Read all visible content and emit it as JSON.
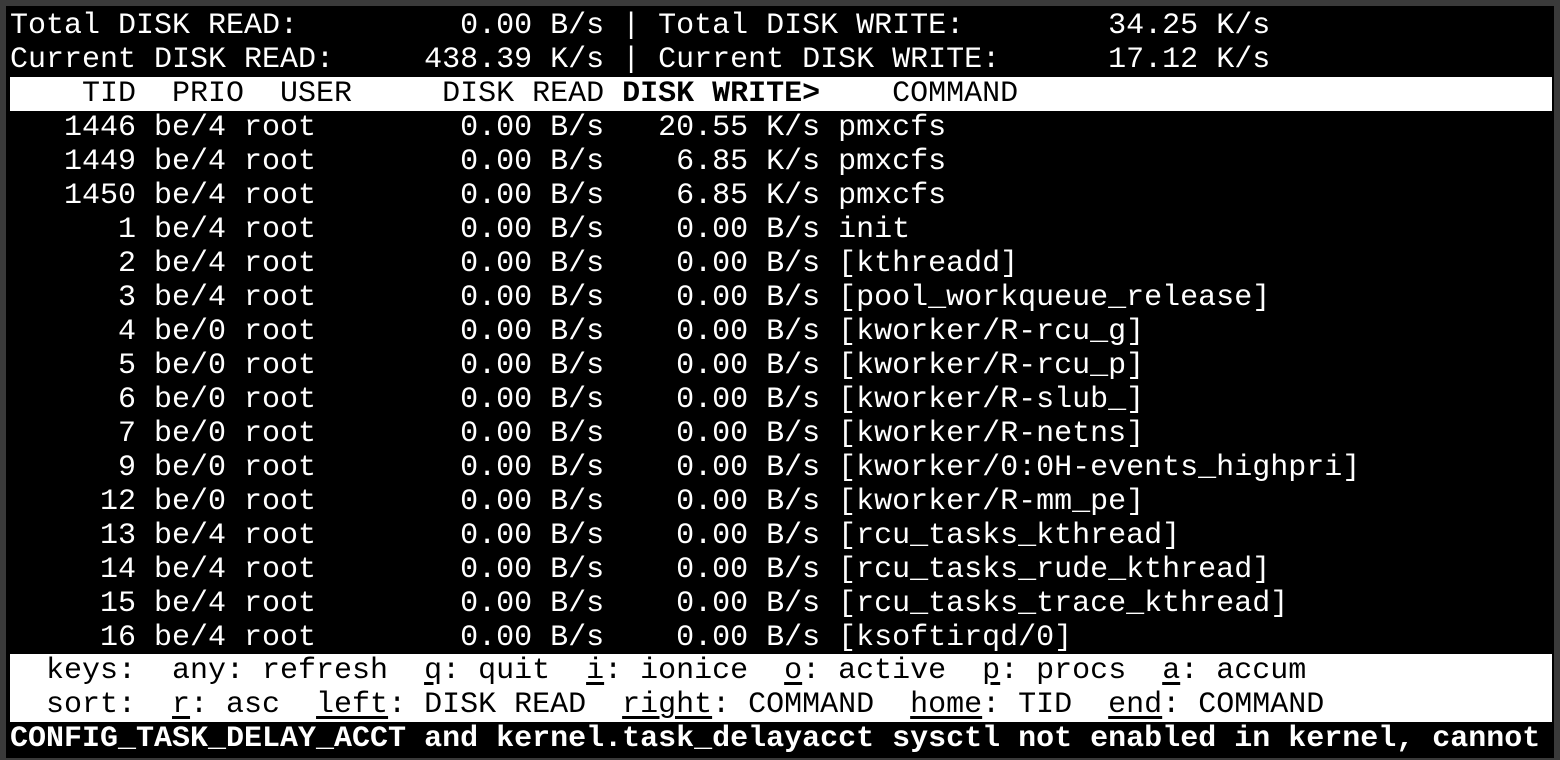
{
  "summary": {
    "total_read_label": "Total DISK READ:",
    "total_read": "0.00 B/s",
    "total_write_label": "Total DISK WRITE:",
    "total_write": "34.25 K/s",
    "current_read_label": "Current DISK READ:",
    "current_read": "438.39 K/s",
    "current_write_label": "Current DISK WRITE:",
    "current_write": "17.12 K/s",
    "separator": "|"
  },
  "columns": {
    "tid": "TID",
    "prio": "PRIO",
    "user": "USER",
    "disk_read": "DISK READ",
    "disk_write": "DISK WRITE>",
    "command": "COMMAND"
  },
  "rows": [
    {
      "tid": "1446",
      "prio": "be/4",
      "user": "root",
      "read": "0.00 B/s",
      "write": "20.55 K/s",
      "command": "pmxcfs"
    },
    {
      "tid": "1449",
      "prio": "be/4",
      "user": "root",
      "read": "0.00 B/s",
      "write": "6.85 K/s",
      "command": "pmxcfs"
    },
    {
      "tid": "1450",
      "prio": "be/4",
      "user": "root",
      "read": "0.00 B/s",
      "write": "6.85 K/s",
      "command": "pmxcfs"
    },
    {
      "tid": "1",
      "prio": "be/4",
      "user": "root",
      "read": "0.00 B/s",
      "write": "0.00 B/s",
      "command": "init"
    },
    {
      "tid": "2",
      "prio": "be/4",
      "user": "root",
      "read": "0.00 B/s",
      "write": "0.00 B/s",
      "command": "[kthreadd]"
    },
    {
      "tid": "3",
      "prio": "be/4",
      "user": "root",
      "read": "0.00 B/s",
      "write": "0.00 B/s",
      "command": "[pool_workqueue_release]"
    },
    {
      "tid": "4",
      "prio": "be/0",
      "user": "root",
      "read": "0.00 B/s",
      "write": "0.00 B/s",
      "command": "[kworker/R-rcu_g]"
    },
    {
      "tid": "5",
      "prio": "be/0",
      "user": "root",
      "read": "0.00 B/s",
      "write": "0.00 B/s",
      "command": "[kworker/R-rcu_p]"
    },
    {
      "tid": "6",
      "prio": "be/0",
      "user": "root",
      "read": "0.00 B/s",
      "write": "0.00 B/s",
      "command": "[kworker/R-slub_]"
    },
    {
      "tid": "7",
      "prio": "be/0",
      "user": "root",
      "read": "0.00 B/s",
      "write": "0.00 B/s",
      "command": "[kworker/R-netns]"
    },
    {
      "tid": "9",
      "prio": "be/0",
      "user": "root",
      "read": "0.00 B/s",
      "write": "0.00 B/s",
      "command": "[kworker/0:0H-events_highpri]"
    },
    {
      "tid": "12",
      "prio": "be/0",
      "user": "root",
      "read": "0.00 B/s",
      "write": "0.00 B/s",
      "command": "[kworker/R-mm_pe]"
    },
    {
      "tid": "13",
      "prio": "be/4",
      "user": "root",
      "read": "0.00 B/s",
      "write": "0.00 B/s",
      "command": "[rcu_tasks_kthread]"
    },
    {
      "tid": "14",
      "prio": "be/4",
      "user": "root",
      "read": "0.00 B/s",
      "write": "0.00 B/s",
      "command": "[rcu_tasks_rude_kthread]"
    },
    {
      "tid": "15",
      "prio": "be/4",
      "user": "root",
      "read": "0.00 B/s",
      "write": "0.00 B/s",
      "command": "[rcu_tasks_trace_kthread]"
    },
    {
      "tid": "16",
      "prio": "be/4",
      "user": "root",
      "read": "0.00 B/s",
      "write": "0.00 B/s",
      "command": "[ksoftirqd/0]"
    }
  ],
  "keys_line": {
    "label": "keys:",
    "items": [
      {
        "key": "any",
        "rest": ": refresh",
        "underline": false
      },
      {
        "key": "q",
        "rest": ": quit",
        "underline": true
      },
      {
        "key": "i",
        "rest": ": ionice",
        "underline": true
      },
      {
        "key": "o",
        "rest": ": active",
        "underline": true
      },
      {
        "key": "p",
        "rest": ": procs",
        "underline": true
      },
      {
        "key": "a",
        "rest": ": accum",
        "underline": true
      }
    ]
  },
  "sort_line": {
    "label": "sort:",
    "items": [
      {
        "key": "r",
        "rest": ": asc",
        "underline": true
      },
      {
        "key": "left",
        "rest": ": DISK READ",
        "underline": true
      },
      {
        "key": "right",
        "rest": ": COMMAND",
        "underline": true
      },
      {
        "key": "home",
        "rest": ": TID",
        "underline": true
      },
      {
        "key": "end",
        "rest": ": COMMAND",
        "underline": true
      }
    ]
  },
  "status_message": "CONFIG_TASK_DELAY_ACCT and kernel.task_delayacct sysctl not enabled in kernel, cannot",
  "colors": {
    "background": "#000000",
    "foreground": "#ffffff",
    "frame": "#3a3a3a"
  }
}
